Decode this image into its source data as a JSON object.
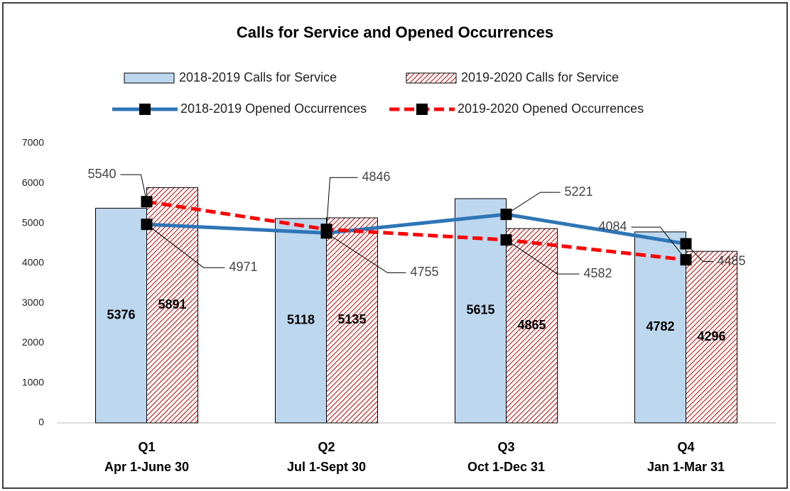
{
  "chart_data": {
    "type": "bar",
    "title": "Calls for Service and Opened Occurrences",
    "categories": [
      "Q1",
      "Q2",
      "Q3",
      "Q4"
    ],
    "category_sublabels": [
      "Apr 1-June 30",
      "Jul 1-Sept 30",
      "Oct 1-Dec 31",
      "Jan 1-Mar 31"
    ],
    "series": [
      {
        "name": "2018-2019 Calls for Service",
        "type": "bar",
        "color": "#bdd7ee",
        "values": [
          5376,
          5118,
          5615,
          4782
        ]
      },
      {
        "name": "2019-2020 Calls for Service",
        "type": "bar",
        "color": "#c00000",
        "pattern": "hatch",
        "values": [
          5891,
          5135,
          4865,
          4296
        ]
      },
      {
        "name": "2018-2019 Opened Occurrences",
        "type": "line",
        "color": "#2e75b6",
        "values": [
          4971,
          4755,
          5221,
          4485
        ]
      },
      {
        "name": "2019-2020 Opened Occurrences",
        "type": "line",
        "color": "#ff0000",
        "dashed": true,
        "values": [
          5540,
          4846,
          4582,
          4084
        ]
      }
    ],
    "ylim": [
      0,
      7000
    ],
    "yticks": [
      0,
      1000,
      2000,
      3000,
      4000,
      5000,
      6000,
      7000
    ],
    "grid": false
  }
}
